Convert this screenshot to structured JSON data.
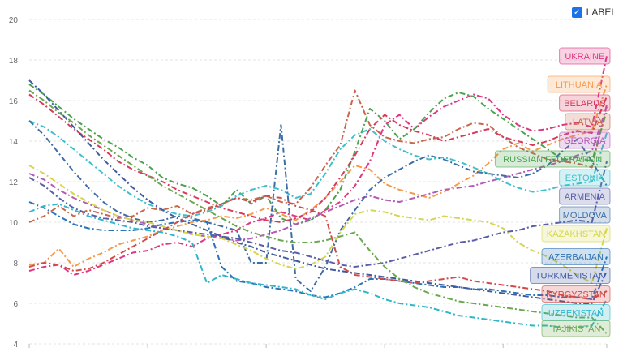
{
  "controls": {
    "label_toggle": "LABEL",
    "label_checked": true
  },
  "chart_data": {
    "type": "line",
    "ylim": [
      4,
      20
    ],
    "yticks": [
      "4",
      "6",
      "8",
      "10",
      "12",
      "14",
      "16",
      "18",
      "20"
    ],
    "grid": true,
    "x_points": 40,
    "series": [
      {
        "name": "UKRAINE",
        "color": "#e0357f",
        "values": [
          7.6,
          7.8,
          7.9,
          7.4,
          7.6,
          7.9,
          8.2,
          8.5,
          8.6,
          8.9,
          9.0,
          8.8,
          9.2,
          9.4,
          9.6,
          10.0,
          10.2,
          10.5,
          10.3,
          10.1,
          10.6,
          11.0,
          11.8,
          13.0,
          14.8,
          15.3,
          14.6,
          15.2,
          15.7,
          16.0,
          16.3,
          16.1,
          15.3,
          14.8,
          14.5,
          14.6,
          14.8,
          14.9,
          14.7,
          18.2
        ]
      },
      {
        "name": "LATVIA",
        "color": "#c8664d",
        "values": [
          10.0,
          10.3,
          10.8,
          10.3,
          10.6,
          10.4,
          10.2,
          10.3,
          10.7,
          10.6,
          10.8,
          10.4,
          10.7,
          10.9,
          11.2,
          11.1,
          11.3,
          11.0,
          10.9,
          11.7,
          12.8,
          13.8,
          16.5,
          14.8,
          14.2,
          14.0,
          13.9,
          14.1,
          14.2,
          14.6,
          14.9,
          14.8,
          14.2,
          13.7,
          13.4,
          13.1,
          13.0,
          12.9,
          12.7,
          15.8
        ]
      },
      {
        "name": "LITHUANIA",
        "color": "#f69a4c",
        "values": [
          7.9,
          8.0,
          8.7,
          7.8,
          8.2,
          8.5,
          8.9,
          9.1,
          9.3,
          9.6,
          9.8,
          10.0,
          10.1,
          10.3,
          10.2,
          10.4,
          10.7,
          10.4,
          10.1,
          10.6,
          11.2,
          12.0,
          12.8,
          12.6,
          11.9,
          11.6,
          11.4,
          11.2,
          11.5,
          11.9,
          12.3,
          12.9,
          13.6,
          13.9,
          13.5,
          13.8,
          14.1,
          14.3,
          14.5,
          16.8
        ]
      },
      {
        "name": "RUSSIAN FEDERATION",
        "color": "#4aa34f",
        "values": [
          16.8,
          16.3,
          15.7,
          15.1,
          14.6,
          14.1,
          13.7,
          13.2,
          12.8,
          12.2,
          11.9,
          11.7,
          11.3,
          10.8,
          11.6,
          10.9,
          11.3,
          10.2,
          9.9,
          10.1,
          10.6,
          11.6,
          13.5,
          15.6,
          15.0,
          14.1,
          14.6,
          15.4,
          16.1,
          16.4,
          16.2,
          15.6,
          15.1,
          14.6,
          14.1,
          13.6,
          13.1,
          13.2,
          13.0,
          15.5
        ]
      },
      {
        "name": "BELARUS",
        "color": "#d83a5b",
        "values": [
          16.3,
          15.8,
          15.2,
          14.6,
          14.1,
          13.6,
          13.0,
          12.6,
          12.3,
          12.0,
          11.6,
          11.3,
          11.0,
          10.7,
          10.5,
          10.3,
          10.1,
          10.0,
          10.2,
          10.5,
          11.2,
          12.2,
          13.3,
          14.6,
          15.3,
          14.8,
          14.5,
          14.3,
          14.0,
          14.2,
          14.4,
          14.6,
          14.2,
          14.0,
          13.8,
          14.0,
          14.3,
          14.5,
          14.4,
          16.2
        ]
      },
      {
        "name": "GEORGIA",
        "color": "#b45bb7",
        "values": [
          12.4,
          12.1,
          11.6,
          11.2,
          10.9,
          10.6,
          10.3,
          10.1,
          9.9,
          9.7,
          9.6,
          9.4,
          9.3,
          9.2,
          9.1,
          9.2,
          9.4,
          9.6,
          9.9,
          10.2,
          10.5,
          10.8,
          11.1,
          11.3,
          11.1,
          11.0,
          11.2,
          11.4,
          11.6,
          11.7,
          11.8,
          12.0,
          12.2,
          12.4,
          12.6,
          12.8,
          13.0,
          13.3,
          13.5,
          15.7
        ]
      },
      {
        "name": "ESTONIA",
        "color": "#3fbfcc",
        "values": [
          15.0,
          14.7,
          14.2,
          13.6,
          13.0,
          12.4,
          11.8,
          11.3,
          10.9,
          10.6,
          10.4,
          10.3,
          10.5,
          10.8,
          11.3,
          11.6,
          11.8,
          11.6,
          11.2,
          11.4,
          12.4,
          13.6,
          14.3,
          14.6,
          14.0,
          13.6,
          13.3,
          13.1,
          13.2,
          13.0,
          12.7,
          12.4,
          12.0,
          11.7,
          11.5,
          11.6,
          11.8,
          11.9,
          12.0,
          14.4
        ]
      },
      {
        "name": "ARMENIA",
        "color": "#5a5ea8",
        "values": [
          12.2,
          11.8,
          11.2,
          10.7,
          10.4,
          10.2,
          10.1,
          10.0,
          9.8,
          9.7,
          9.6,
          9.5,
          9.4,
          9.3,
          9.2,
          9.0,
          8.8,
          8.6,
          8.5,
          8.3,
          8.1,
          7.9,
          7.8,
          7.9,
          8.0,
          8.2,
          8.4,
          8.6,
          8.8,
          9.0,
          9.1,
          9.3,
          9.5,
          9.6,
          9.8,
          9.9,
          10.0,
          10.1,
          10.0,
          13.0
        ]
      },
      {
        "name": "MOLDOVA",
        "color": "#3d6ea6",
        "values": [
          15.0,
          14.3,
          13.4,
          12.5,
          11.7,
          11.0,
          10.5,
          10.2,
          10.0,
          10.1,
          10.3,
          10.2,
          10.0,
          9.8,
          9.6,
          8.0,
          8.0,
          14.8,
          7.2,
          6.6,
          7.8,
          9.6,
          10.6,
          11.6,
          12.2,
          12.6,
          13.0,
          13.3,
          13.1,
          12.8,
          12.5,
          12.4,
          12.3,
          12.2,
          12.4,
          12.8,
          13.5,
          14.1,
          13.0,
          11.8
        ]
      },
      {
        "name": "KAZAKHSTAN",
        "color": "#d6d54e",
        "values": [
          12.8,
          12.4,
          11.9,
          11.4,
          11.0,
          10.6,
          10.3,
          10.1,
          10.0,
          9.8,
          9.6,
          9.4,
          9.3,
          9.2,
          8.9,
          8.6,
          8.2,
          7.9,
          7.7,
          7.9,
          8.3,
          9.5,
          10.4,
          10.6,
          10.5,
          10.3,
          10.2,
          10.1,
          10.3,
          10.2,
          10.1,
          10.0,
          9.7,
          9.0,
          8.6,
          8.3,
          7.9,
          7.4,
          7.0,
          9.7
        ]
      },
      {
        "name": "AZERBAIJAN",
        "color": "#2b73b8",
        "values": [
          11.0,
          10.7,
          10.3,
          9.9,
          9.7,
          9.6,
          9.6,
          9.6,
          9.7,
          9.9,
          10.0,
          10.1,
          10.0,
          7.8,
          7.1,
          7.0,
          6.8,
          6.7,
          6.6,
          6.4,
          6.3,
          6.5,
          6.8,
          7.2,
          7.2,
          7.1,
          7.0,
          6.9,
          6.8,
          6.8,
          6.7,
          6.7,
          6.6,
          6.5,
          6.4,
          6.4,
          6.3,
          6.3,
          6.2,
          8.3
        ]
      },
      {
        "name": "TURKMENISTAN",
        "color": "#3f5a9e",
        "values": [
          17.0,
          16.3,
          15.5,
          14.7,
          13.9,
          13.1,
          12.4,
          11.7,
          11.1,
          10.6,
          10.2,
          9.9,
          9.6,
          9.3,
          9.0,
          8.8,
          8.5,
          8.3,
          8.1,
          7.9,
          7.7,
          7.6,
          7.5,
          7.4,
          7.3,
          7.2,
          7.1,
          7.0,
          6.9,
          6.8,
          6.7,
          6.6,
          6.5,
          6.4,
          6.3,
          6.2,
          6.1,
          6.0,
          6.0,
          7.6
        ]
      },
      {
        "name": "KYRGYZSTAN",
        "color": "#d24a4a",
        "values": [
          7.8,
          8.0,
          7.9,
          7.6,
          7.7,
          8.0,
          8.4,
          8.8,
          9.2,
          9.6,
          10.0,
          10.4,
          10.6,
          10.9,
          11.2,
          11.0,
          11.3,
          11.2,
          10.8,
          10.6,
          10.3,
          7.8,
          7.4,
          7.3,
          7.2,
          7.1,
          7.0,
          7.1,
          7.2,
          7.3,
          7.1,
          7.0,
          6.9,
          6.8,
          6.7,
          6.6,
          6.4,
          6.3,
          6.2,
          6.6
        ]
      },
      {
        "name": "UZBEKISTAN",
        "color": "#2fb7c9",
        "values": [
          10.5,
          10.8,
          10.9,
          10.6,
          10.3,
          10.1,
          9.9,
          9.7,
          9.6,
          9.5,
          9.3,
          9.0,
          7.0,
          7.4,
          7.2,
          7.0,
          6.9,
          6.8,
          6.7,
          6.4,
          6.2,
          6.5,
          6.7,
          6.5,
          6.2,
          6.0,
          5.9,
          5.8,
          5.6,
          5.4,
          5.3,
          5.2,
          5.1,
          5.0,
          4.9,
          4.9,
          4.8,
          4.8,
          4.9,
          6.2
        ]
      },
      {
        "name": "TAJIKISTAN",
        "color": "#6aa84f",
        "values": [
          16.5,
          16.0,
          15.4,
          14.9,
          14.3,
          13.8,
          13.3,
          12.8,
          12.3,
          11.8,
          11.4,
          11.0,
          10.6,
          10.2,
          9.8,
          9.5,
          9.3,
          9.1,
          9.0,
          9.0,
          9.1,
          9.3,
          9.5,
          8.6,
          7.8,
          7.2,
          6.8,
          6.5,
          6.3,
          6.1,
          6.0,
          5.9,
          5.8,
          5.7,
          5.6,
          5.5,
          5.4,
          5.3,
          5.3,
          4.5
        ]
      }
    ]
  }
}
